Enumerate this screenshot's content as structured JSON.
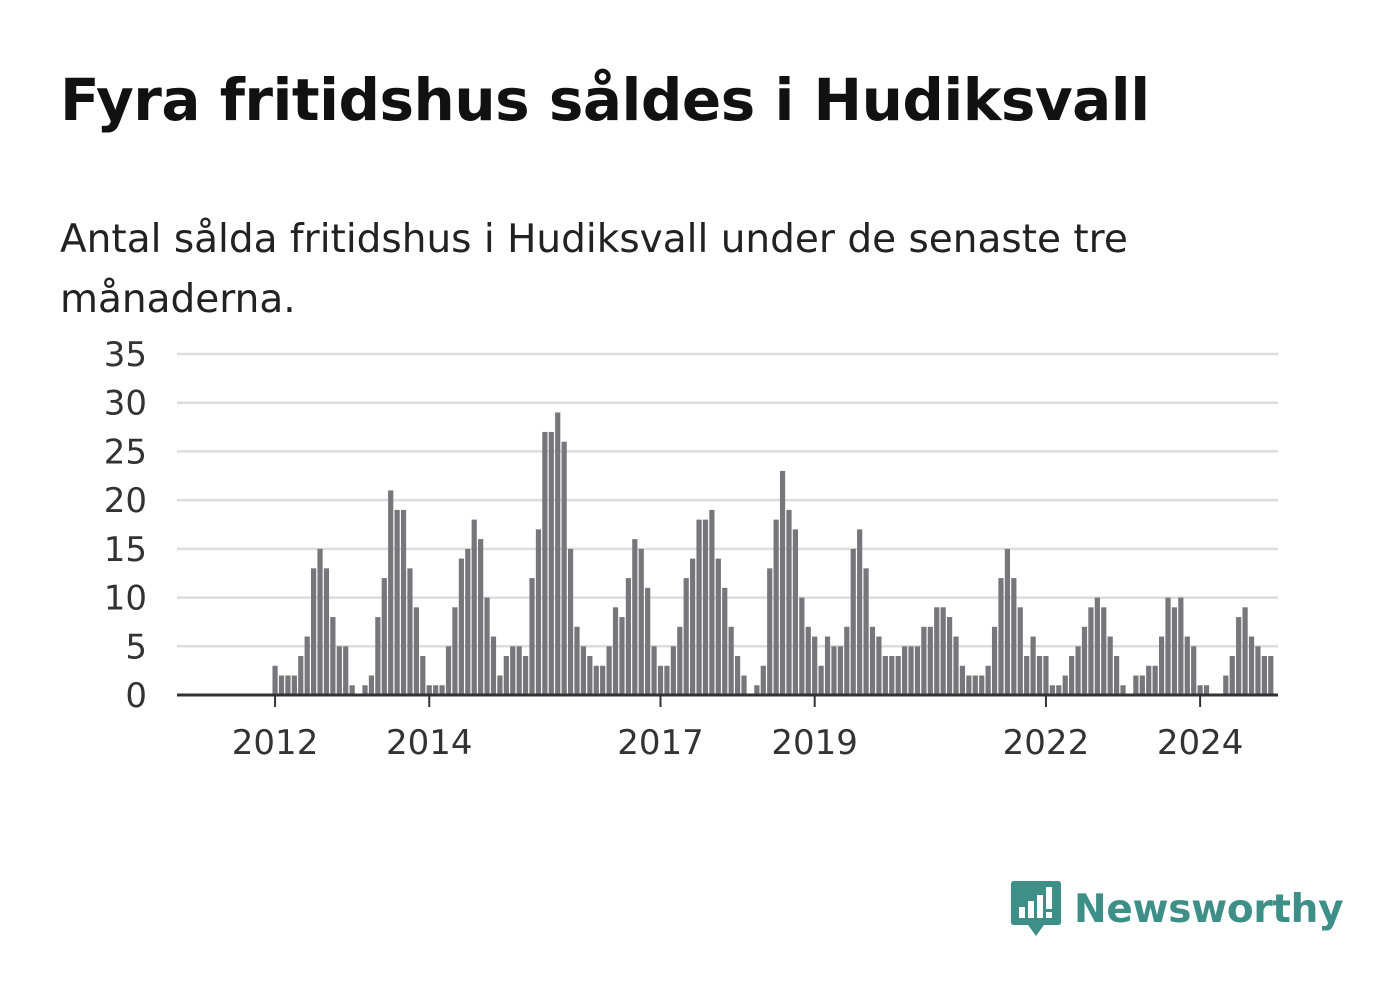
{
  "title": "Fyra fritidshus såldes i Hudiksvall",
  "subtitle": "Antal sålda fritidshus i Hudiksvall under de senaste tre månaderna.",
  "brand": {
    "name": "Newsworthy",
    "color": "#3d8f88"
  },
  "colors": {
    "bar": "#77767b",
    "highlight": "#1f9a95",
    "grid": "#dddddd",
    "axis": "#333333"
  },
  "chart_data": {
    "type": "bar",
    "xlabel": "",
    "ylabel": "",
    "ylim": [
      0,
      35
    ],
    "yticks": [
      0,
      5,
      10,
      15,
      20,
      25,
      30,
      35
    ],
    "grid": true,
    "x_ticks": [
      {
        "label": "2012",
        "index": 7
      },
      {
        "label": "2014",
        "index": 31
      },
      {
        "label": "2017",
        "index": 67
      },
      {
        "label": "2019",
        "index": 91
      },
      {
        "label": "2022",
        "index": 127
      },
      {
        "label": "2024",
        "index": 151
      }
    ],
    "values": [
      0,
      0,
      0,
      0,
      0,
      0,
      0,
      3,
      2,
      2,
      2,
      4,
      6,
      13,
      15,
      13,
      8,
      5,
      5,
      1,
      0,
      1,
      2,
      8,
      12,
      21,
      19,
      19,
      13,
      9,
      4,
      1,
      1,
      1,
      5,
      9,
      14,
      15,
      18,
      16,
      10,
      6,
      2,
      4,
      5,
      5,
      4,
      12,
      17,
      27,
      27,
      29,
      26,
      15,
      7,
      5,
      4,
      3,
      3,
      5,
      9,
      8,
      12,
      16,
      15,
      11,
      5,
      3,
      3,
      5,
      7,
      12,
      14,
      18,
      18,
      19,
      14,
      11,
      7,
      4,
      2,
      0,
      1,
      3,
      13,
      18,
      23,
      19,
      17,
      10,
      7,
      6,
      3,
      6,
      5,
      5,
      7,
      15,
      17,
      13,
      7,
      6,
      4,
      4,
      4,
      5,
      5,
      5,
      7,
      7,
      9,
      9,
      8,
      6,
      3,
      2,
      2,
      2,
      3,
      7,
      12,
      15,
      12,
      9,
      4,
      6,
      4,
      4,
      1,
      1,
      2,
      4,
      5,
      7,
      9,
      10,
      9,
      6,
      4,
      1,
      0,
      2,
      2,
      3,
      3,
      6,
      10,
      9,
      10,
      6,
      5,
      1,
      1,
      0,
      0,
      2,
      4,
      8,
      9,
      6,
      5,
      4,
      4
    ],
    "highlight_index": 163,
    "annotation": "4"
  }
}
